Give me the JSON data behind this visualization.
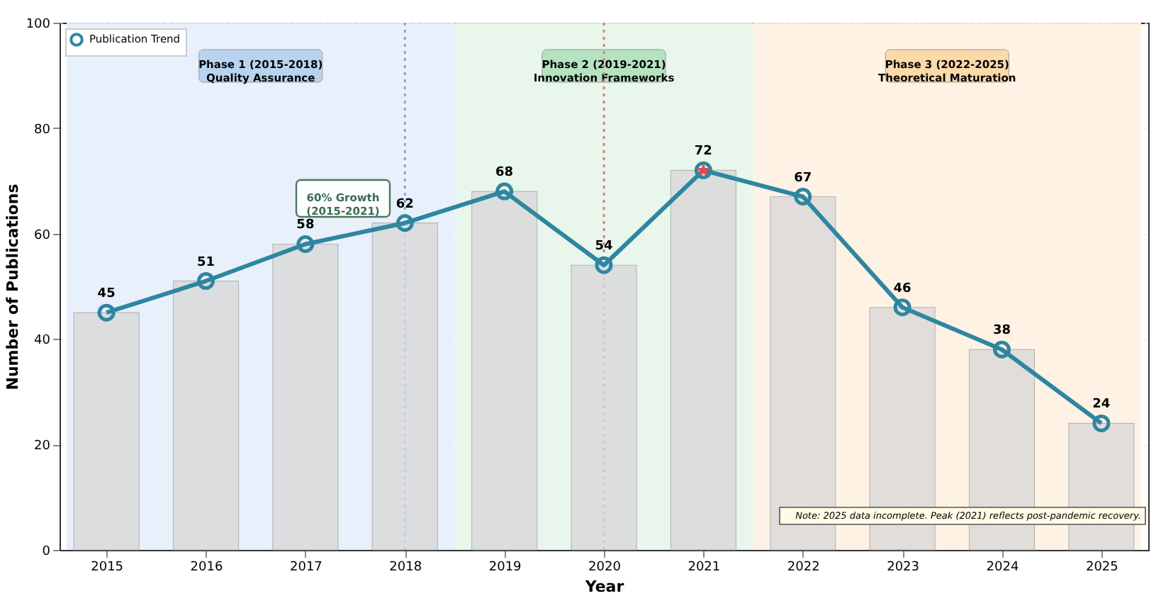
{
  "chart_data": {
    "type": "bar",
    "xlabel": "Year",
    "ylabel": "Number of Publications",
    "x": [
      2015,
      2016,
      2017,
      2018,
      2019,
      2020,
      2021,
      2022,
      2023,
      2024,
      2025
    ],
    "xlim": [
      2014.6,
      2025.4
    ],
    "xticks": [
      2015,
      2016,
      2017,
      2018,
      2019,
      2020,
      2021,
      2022,
      2023,
      2024,
      2025
    ],
    "ylim": [
      0,
      100
    ],
    "yticks": [
      0,
      20,
      40,
      60,
      80,
      100
    ],
    "grid": "y",
    "legend": "top left",
    "series": [
      {
        "color": "#d9d9d9",
        "values": [
          45,
          51,
          58,
          62,
          68,
          54,
          72,
          67,
          46,
          38,
          24
        ]
      },
      {
        "type": "line",
        "name": "Publication Trend",
        "color": "#2e86a0",
        "marker": "circle",
        "line_style": "solid",
        "data_labels": true,
        "values": [
          45,
          51,
          58,
          62,
          68,
          54,
          72,
          67,
          46,
          38,
          24
        ]
      },
      {
        "type": "scatter",
        "color": "#e8474f",
        "marker": "star",
        "x": [
          2021
        ],
        "values": [
          72
        ]
      }
    ],
    "bands": [
      {
        "axis": "x",
        "from": 2014.6,
        "to": 2018.5,
        "label": "Phase 1 (2015-2018)\nQuality Assurance",
        "color": "#e6eefb"
      },
      {
        "axis": "x",
        "from": 2018.5,
        "to": 2021.5,
        "label": "Phase 2 (2019-2021)\nInnovation Frameworks",
        "color": "#e5f5e9"
      },
      {
        "axis": "x",
        "from": 2021.5,
        "to": 2025.4,
        "label": "Phase 3 (2022-2025)\nTheoretical Maturation",
        "color": "#fef1e2"
      }
    ],
    "ref_lines": [
      {
        "axis": "x",
        "value": 2018,
        "color": "#7fa8d9",
        "line_style": "dotted"
      },
      {
        "axis": "x",
        "value": 2020,
        "color": "#d87c7c",
        "line_style": "dotted"
      }
    ],
    "annotations": [
      "60% Growth\n(2015-2021)",
      "Note: 2025 data incomplete. Peak (2021) reflects post-pandemic recovery."
    ]
  }
}
